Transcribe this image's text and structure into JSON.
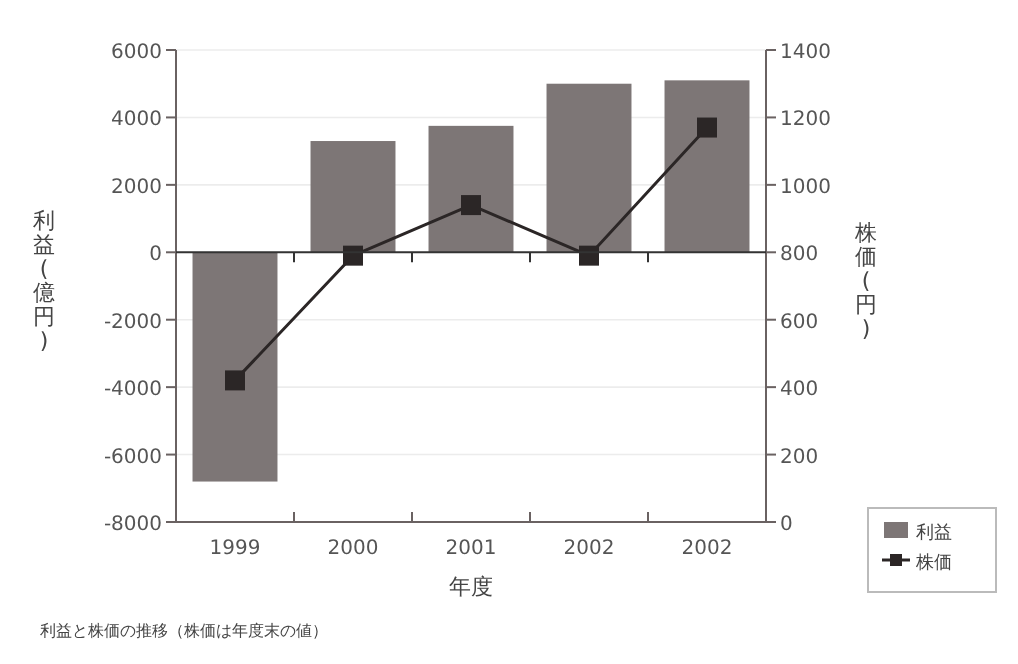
{
  "chart_data": {
    "type": "bar",
    "categories": [
      "1999",
      "2000",
      "2001",
      "2002",
      "2002"
    ],
    "series": [
      {
        "name": "利益",
        "color": "#7d7676",
        "values": [
          -6800,
          3300,
          3750,
          5000,
          5100
        ]
      },
      {
        "name": "株価",
        "type": "line",
        "axis": "y2",
        "color": "#2b2626",
        "marker": "square",
        "values": [
          420,
          790,
          940,
          790,
          1170
        ]
      }
    ],
    "xlabel": "年度",
    "ylabel": "利益(億円)",
    "y2label": "株価(円)",
    "ylim": [
      -8000,
      6000
    ],
    "yticks": [
      -8000,
      -6000,
      -4000,
      -2000,
      0,
      2000,
      4000,
      6000
    ],
    "y2lim": [
      0,
      1400
    ],
    "y2ticks": [
      0,
      200,
      400,
      600,
      800,
      1000,
      1200,
      1400
    ],
    "grid": "y",
    "legend": "bottom right",
    "annotations": [
      "利益と株価の推移（株価は年度末の値）"
    ]
  }
}
